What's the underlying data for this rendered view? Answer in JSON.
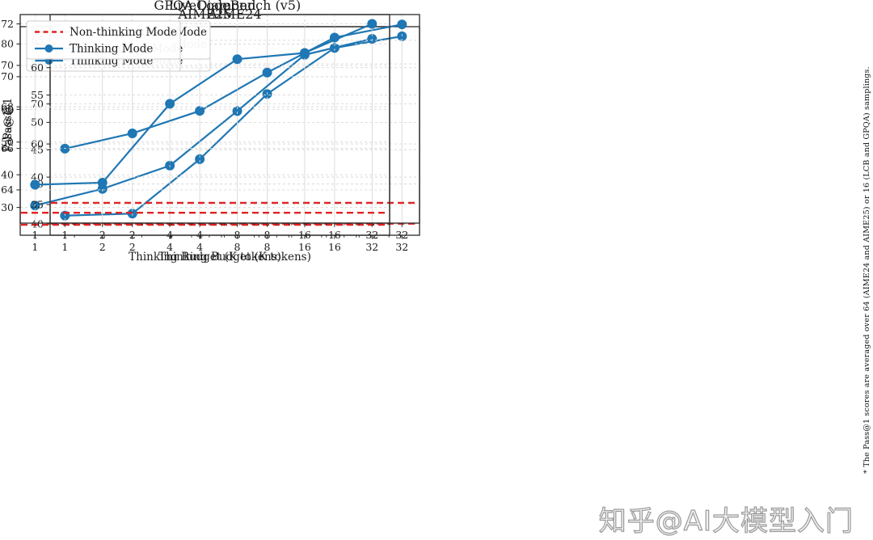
{
  "page": {
    "background": "#ffffff"
  },
  "watermark": {
    "text": "知乎@AI大模型入门"
  },
  "footnote": {
    "text": "* The Pass@1 scores are averaged over 64 (AIME24 and AIME25) or 16 (LCB and GPQA) samplings."
  },
  "colors": {
    "thinking_line": "#1f77b4",
    "non_thinking_line": "#e02222",
    "grid": "#d8d8d8",
    "spine": "#2b2b2b",
    "text": "#1a1a1a",
    "legend_border": "#cccccc",
    "legend_bg": "#ffffff"
  },
  "legend": {
    "non_thinking_label": "Non-thinking Mode",
    "thinking_label": "Thinking Mode"
  },
  "chart_data": [
    {
      "type": "line",
      "title": "AIME24",
      "ylabel": "Pass@1",
      "xlabel": "",
      "x": [
        1,
        2,
        4,
        8,
        16,
        32
      ],
      "x_tick_labels": [
        "1",
        "2",
        "4",
        "8",
        "16",
        "32"
      ],
      "xscale": "log2",
      "yticks": [
        40,
        50,
        60,
        70,
        80
      ],
      "ylim": [
        37.2,
        89.3
      ],
      "grid": true,
      "legend_position": "upper left",
      "series": [
        {
          "name": "Non-thinking Mode",
          "style": "dashed-hline",
          "color": "#e02222",
          "value": 40.1
        },
        {
          "name": "Thinking Mode",
          "style": "line-marker",
          "color": "#1f77b4",
          "values": [
            42.1,
            42.6,
            56.2,
            72.5,
            84.0,
            86.9
          ]
        }
      ]
    },
    {
      "type": "line",
      "title": "AIME25",
      "ylabel": "",
      "xlabel": "",
      "x": [
        1,
        2,
        4,
        8,
        16,
        32
      ],
      "x_tick_labels": [
        "1",
        "2",
        "4",
        "8",
        "16",
        "32"
      ],
      "xscale": "log2",
      "yticks": [
        30,
        40,
        50,
        60,
        70,
        80
      ],
      "ylim": [
        21.5,
        85.3
      ],
      "grid": true,
      "legend_position": "upper left",
      "series": [
        {
          "name": "Non-thinking Mode",
          "style": "dashed-hline",
          "color": "#e02222",
          "value": 24.7
        },
        {
          "name": "Thinking Mode",
          "style": "line-marker",
          "color": "#1f77b4",
          "values": [
            30.6,
            35.7,
            42.8,
            59.5,
            76.7,
            81.6
          ]
        }
      ]
    },
    {
      "type": "line",
      "title": "LiveCodeBench (v5)",
      "ylabel": "Pass@1",
      "xlabel": "Thinking Budget (K tokens)",
      "x": [
        1,
        2,
        4,
        8,
        16,
        32
      ],
      "x_tick_labels": [
        "1",
        "2",
        "4",
        "8",
        "16",
        "32"
      ],
      "xscale": "log2",
      "yticks": [
        35,
        40,
        45,
        50,
        55,
        60,
        65
      ],
      "ylim": [
        31.6,
        69.7
      ],
      "grid": true,
      "legend_position": "upper left",
      "series": [
        {
          "name": "Non-thinking Mode",
          "style": "dashed-hline",
          "color": "#e02222",
          "value": 35.3
        },
        {
          "name": "Thinking Mode",
          "style": "line-marker",
          "color": "#1f77b4",
          "values": [
            45.2,
            48.0,
            52.1,
            59.1,
            65.5,
            67.9
          ]
        }
      ]
    },
    {
      "type": "line",
      "title": "GPQA Diamond",
      "ylabel": "",
      "xlabel": "Thinking Budget (K tokens)",
      "x": [
        1,
        2,
        4,
        8,
        16,
        32
      ],
      "x_tick_labels": [
        "1",
        "2",
        "4",
        "8",
        "16",
        "32"
      ],
      "xscale": "log2",
      "yticks": [
        64,
        66,
        68,
        70,
        72
      ],
      "ylim": [
        62.4,
        72.45
      ],
      "grid": true,
      "legend_position": "upper left",
      "series": [
        {
          "name": "Non-thinking Mode",
          "style": "dashed-hline",
          "color": "#e02222",
          "value": 62.9
        },
        {
          "name": "Thinking Mode",
          "style": "line-marker",
          "color": "#1f77b4",
          "values": [
            64.25,
            64.35,
            68.15,
            70.3,
            70.6,
            72.0
          ]
        }
      ]
    }
  ]
}
